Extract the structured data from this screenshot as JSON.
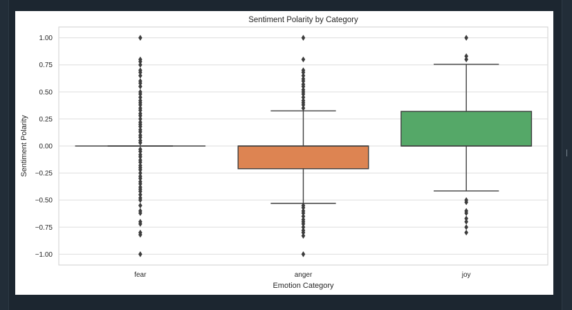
{
  "chart_data": {
    "type": "box",
    "title": "Sentiment Polarity by Category",
    "xlabel": "Emotion Category",
    "ylabel": "Sentiment Polarity",
    "ylim": [
      -1.1,
      1.1
    ],
    "yticks": [
      {
        "value": 1.0,
        "label": "1.00"
      },
      {
        "value": 0.75,
        "label": "0.75"
      },
      {
        "value": 0.5,
        "label": "0.50"
      },
      {
        "value": 0.25,
        "label": "0.25"
      },
      {
        "value": 0.0,
        "label": "0.00"
      },
      {
        "value": -0.25,
        "label": "−0.25"
      },
      {
        "value": -0.5,
        "label": "−0.50"
      },
      {
        "value": -0.75,
        "label": "−0.75"
      },
      {
        "value": -1.0,
        "label": "−1.00"
      }
    ],
    "grid": true,
    "categories": [
      {
        "name": "fear",
        "color": "#4c72b0",
        "q1": 0.0,
        "median": 0.0,
        "q3": 0.0,
        "whisker_low": 0.0,
        "whisker_high": 0.0,
        "outliers": [
          1.0,
          0.8,
          0.78,
          0.75,
          0.7,
          0.68,
          0.65,
          0.6,
          0.58,
          0.55,
          0.5,
          0.48,
          0.45,
          0.42,
          0.4,
          0.38,
          0.35,
          0.33,
          0.3,
          0.28,
          0.25,
          0.22,
          0.2,
          0.18,
          0.15,
          0.13,
          0.1,
          0.08,
          0.05,
          0.03,
          -0.03,
          -0.05,
          -0.08,
          -0.1,
          -0.13,
          -0.15,
          -0.18,
          -0.2,
          -0.22,
          -0.25,
          -0.28,
          -0.3,
          -0.33,
          -0.35,
          -0.38,
          -0.4,
          -0.42,
          -0.45,
          -0.48,
          -0.5,
          -0.55,
          -0.6,
          -0.62,
          -0.7,
          -0.72,
          -0.8,
          -0.82,
          -1.0
        ]
      },
      {
        "name": "anger",
        "color": "#dd8452",
        "q1": -0.21,
        "median": 0.0,
        "q3": 0.0,
        "whisker_low": -0.53,
        "whisker_high": 0.325,
        "outliers": [
          1.0,
          0.8,
          0.7,
          0.68,
          0.65,
          0.62,
          0.6,
          0.57,
          0.55,
          0.52,
          0.5,
          0.48,
          0.45,
          0.42,
          0.4,
          0.38,
          0.35,
          -0.55,
          -0.57,
          -0.6,
          -0.62,
          -0.65,
          -0.68,
          -0.7,
          -0.72,
          -0.75,
          -0.78,
          -0.8,
          -0.83,
          -1.0
        ]
      },
      {
        "name": "joy",
        "color": "#55a868",
        "q1": 0.0,
        "median": 0.0,
        "q3": 0.32,
        "whisker_low": -0.415,
        "whisker_high": 0.755,
        "outliers": [
          1.0,
          0.83,
          0.8,
          -0.5,
          -0.52,
          -0.6,
          -0.62,
          -0.67,
          -0.7,
          -0.75,
          -0.8
        ]
      }
    ]
  }
}
